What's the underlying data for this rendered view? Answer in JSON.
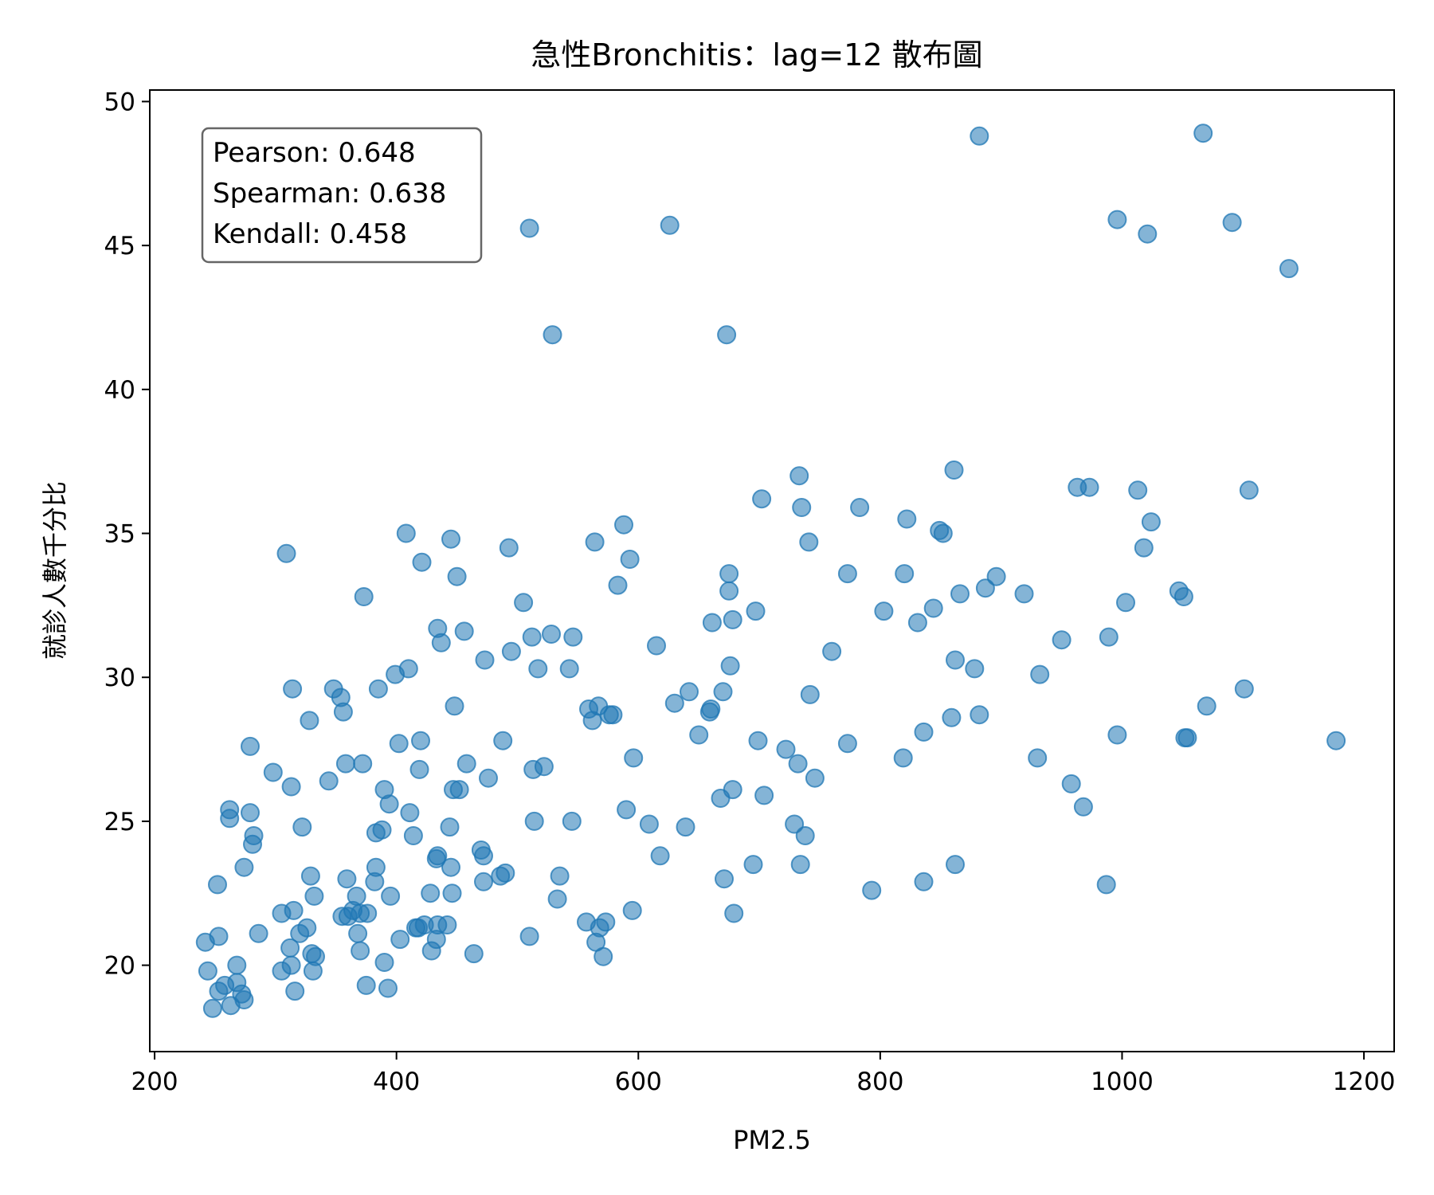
{
  "chart_data": {
    "type": "scatter",
    "title": "急性Bronchitis：lag=12 散布圖",
    "xlabel": "PM2.5",
    "ylabel": "就診人數千分比",
    "xlim": [
      196,
      1225
    ],
    "ylim": [
      17.0,
      50.4
    ],
    "xticks": [
      200,
      400,
      600,
      800,
      1000,
      1200
    ],
    "yticks": [
      20,
      25,
      30,
      35,
      40,
      45,
      50
    ],
    "xtick_labels": [
      "200",
      "400",
      "600",
      "800",
      "1000",
      "1200"
    ],
    "ytick_labels": [
      "20",
      "25",
      "30",
      "35",
      "40",
      "45",
      "50"
    ],
    "stats": {
      "pearson": "Pearson: 0.648",
      "spearman": "Spearman: 0.638",
      "kendall": "Kendall: 0.458"
    },
    "point_color": "#1f77b4",
    "point_alpha": 0.55,
    "grid": false,
    "points": [
      [
        242,
        20.8
      ],
      [
        244,
        19.8
      ],
      [
        248,
        18.5
      ],
      [
        252,
        22.8
      ],
      [
        253,
        21.0
      ],
      [
        253,
        19.1
      ],
      [
        258,
        19.3
      ],
      [
        262,
        25.4
      ],
      [
        262,
        25.1
      ],
      [
        263,
        18.6
      ],
      [
        268,
        20.0
      ],
      [
        268,
        19.4
      ],
      [
        272,
        19.0
      ],
      [
        274,
        18.8
      ],
      [
        274,
        23.4
      ],
      [
        279,
        27.6
      ],
      [
        279,
        25.3
      ],
      [
        281,
        24.2
      ],
      [
        282,
        24.5
      ],
      [
        286,
        21.1
      ],
      [
        298,
        26.7
      ],
      [
        305,
        21.8
      ],
      [
        305,
        19.8
      ],
      [
        309,
        34.3
      ],
      [
        312,
        20.6
      ],
      [
        313,
        26.2
      ],
      [
        313,
        20.0
      ],
      [
        314,
        29.6
      ],
      [
        315,
        21.9
      ],
      [
        316,
        19.1
      ],
      [
        320,
        21.1
      ],
      [
        322,
        24.8
      ],
      [
        326,
        21.3
      ],
      [
        328,
        28.5
      ],
      [
        329,
        23.1
      ],
      [
        330,
        20.4
      ],
      [
        331,
        19.8
      ],
      [
        332,
        22.4
      ],
      [
        333,
        20.3
      ],
      [
        344,
        26.4
      ],
      [
        348,
        29.6
      ],
      [
        354,
        29.3
      ],
      [
        355,
        21.7
      ],
      [
        356,
        28.8
      ],
      [
        358,
        27.0
      ],
      [
        359,
        23.0
      ],
      [
        360,
        21.7
      ],
      [
        364,
        21.9
      ],
      [
        367,
        22.4
      ],
      [
        368,
        21.1
      ],
      [
        370,
        21.8
      ],
      [
        370,
        20.5
      ],
      [
        372,
        27.0
      ],
      [
        373,
        32.8
      ],
      [
        375,
        19.3
      ],
      [
        376,
        21.8
      ],
      [
        382,
        22.9
      ],
      [
        383,
        23.4
      ],
      [
        383,
        24.6
      ],
      [
        385,
        29.6
      ],
      [
        388,
        24.7
      ],
      [
        390,
        20.1
      ],
      [
        390,
        26.1
      ],
      [
        393,
        19.2
      ],
      [
        394,
        25.6
      ],
      [
        395,
        22.4
      ],
      [
        399,
        30.1
      ],
      [
        402,
        27.7
      ],
      [
        403,
        20.9
      ],
      [
        408,
        35.0
      ],
      [
        410,
        30.3
      ],
      [
        411,
        25.3
      ],
      [
        414,
        24.5
      ],
      [
        416,
        21.3
      ],
      [
        418,
        21.3
      ],
      [
        419,
        26.8
      ],
      [
        420,
        27.8
      ],
      [
        421,
        34.0
      ],
      [
        423,
        21.4
      ],
      [
        428,
        22.5
      ],
      [
        429,
        20.5
      ],
      [
        433,
        23.7
      ],
      [
        433,
        20.9
      ],
      [
        434,
        31.7
      ],
      [
        434,
        21.4
      ],
      [
        434,
        23.8
      ],
      [
        437,
        31.2
      ],
      [
        442,
        21.4
      ],
      [
        444,
        24.8
      ],
      [
        445,
        34.8
      ],
      [
        445,
        23.4
      ],
      [
        446,
        22.5
      ],
      [
        447,
        26.1
      ],
      [
        448,
        29.0
      ],
      [
        450,
        33.5
      ],
      [
        452,
        26.1
      ],
      [
        456,
        31.6
      ],
      [
        458,
        27.0
      ],
      [
        464,
        20.4
      ],
      [
        470,
        24.0
      ],
      [
        472,
        23.8
      ],
      [
        472,
        22.9
      ],
      [
        473,
        30.6
      ],
      [
        476,
        26.5
      ],
      [
        486,
        23.1
      ],
      [
        488,
        27.8
      ],
      [
        490,
        23.2
      ],
      [
        493,
        34.5
      ],
      [
        495,
        30.9
      ],
      [
        505,
        32.6
      ],
      [
        510,
        21.0
      ],
      [
        510,
        45.6
      ],
      [
        512,
        31.4
      ],
      [
        513,
        26.8
      ],
      [
        514,
        25.0
      ],
      [
        517,
        30.3
      ],
      [
        522,
        26.9
      ],
      [
        528,
        31.5
      ],
      [
        529,
        41.9
      ],
      [
        533,
        22.3
      ],
      [
        535,
        23.1
      ],
      [
        543,
        30.3
      ],
      [
        545,
        25.0
      ],
      [
        546,
        31.4
      ],
      [
        557,
        21.5
      ],
      [
        559,
        28.9
      ],
      [
        562,
        28.5
      ],
      [
        564,
        34.7
      ],
      [
        565,
        20.8
      ],
      [
        567,
        29.0
      ],
      [
        568,
        21.3
      ],
      [
        571,
        20.3
      ],
      [
        573,
        21.5
      ],
      [
        576,
        28.7
      ],
      [
        579,
        28.7
      ],
      [
        583,
        33.2
      ],
      [
        588,
        35.3
      ],
      [
        590,
        25.4
      ],
      [
        593,
        34.1
      ],
      [
        595,
        21.9
      ],
      [
        596,
        27.2
      ],
      [
        609,
        24.9
      ],
      [
        615,
        31.1
      ],
      [
        618,
        23.8
      ],
      [
        626,
        45.7
      ],
      [
        630,
        29.1
      ],
      [
        639,
        24.8
      ],
      [
        642,
        29.5
      ],
      [
        650,
        28.0
      ],
      [
        659,
        28.8
      ],
      [
        660,
        28.9
      ],
      [
        661,
        31.9
      ],
      [
        668,
        25.8
      ],
      [
        670,
        29.5
      ],
      [
        671,
        23.0
      ],
      [
        673,
        41.9
      ],
      [
        675,
        33.0
      ],
      [
        675,
        33.6
      ],
      [
        676,
        30.4
      ],
      [
        678,
        32.0
      ],
      [
        678,
        26.1
      ],
      [
        679,
        21.8
      ],
      [
        695,
        23.5
      ],
      [
        697,
        32.3
      ],
      [
        699,
        27.8
      ],
      [
        702,
        36.2
      ],
      [
        704,
        25.9
      ],
      [
        722,
        27.5
      ],
      [
        729,
        24.9
      ],
      [
        732,
        27.0
      ],
      [
        733,
        37.0
      ],
      [
        734,
        23.5
      ],
      [
        735,
        35.9
      ],
      [
        738,
        24.5
      ],
      [
        741,
        34.7
      ],
      [
        742,
        29.4
      ],
      [
        746,
        26.5
      ],
      [
        760,
        30.9
      ],
      [
        773,
        27.7
      ],
      [
        773,
        33.6
      ],
      [
        783,
        35.9
      ],
      [
        793,
        22.6
      ],
      [
        803,
        32.3
      ],
      [
        819,
        27.2
      ],
      [
        820,
        33.6
      ],
      [
        822,
        35.5
      ],
      [
        831,
        31.9
      ],
      [
        836,
        22.9
      ],
      [
        836,
        28.1
      ],
      [
        844,
        32.4
      ],
      [
        849,
        35.1
      ],
      [
        852,
        35.0
      ],
      [
        859,
        28.6
      ],
      [
        861,
        37.2
      ],
      [
        862,
        23.5
      ],
      [
        862,
        30.6
      ],
      [
        866,
        32.9
      ],
      [
        878,
        30.3
      ],
      [
        882,
        48.8
      ],
      [
        882,
        28.7
      ],
      [
        887,
        33.1
      ],
      [
        896,
        33.5
      ],
      [
        919,
        32.9
      ],
      [
        930,
        27.2
      ],
      [
        932,
        30.1
      ],
      [
        950,
        31.3
      ],
      [
        958,
        26.3
      ],
      [
        963,
        36.6
      ],
      [
        968,
        25.5
      ],
      [
        973,
        36.6
      ],
      [
        987,
        22.8
      ],
      [
        989,
        31.4
      ],
      [
        996,
        45.9
      ],
      [
        996,
        28.0
      ],
      [
        1003,
        32.6
      ],
      [
        1013,
        36.5
      ],
      [
        1018,
        34.5
      ],
      [
        1021,
        45.4
      ],
      [
        1024,
        35.4
      ],
      [
        1047,
        33.0
      ],
      [
        1051,
        32.8
      ],
      [
        1052,
        27.9
      ],
      [
        1054,
        27.9
      ],
      [
        1067,
        48.9
      ],
      [
        1070,
        29.0
      ],
      [
        1091,
        45.8
      ],
      [
        1101,
        29.6
      ],
      [
        1105,
        36.5
      ],
      [
        1138,
        44.2
      ],
      [
        1177,
        27.8
      ]
    ]
  }
}
